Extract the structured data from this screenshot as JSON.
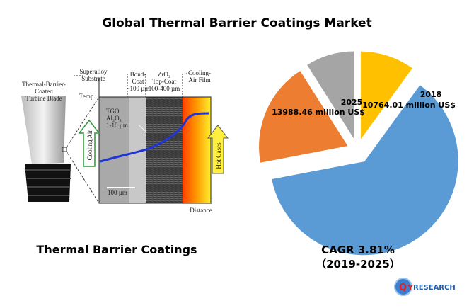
{
  "header": {
    "title": "Global Thermal Barrier Coatings Market"
  },
  "diagram": {
    "blade_label": [
      "Thermal-Barrier-",
      "Coated",
      "Turbine Blade"
    ],
    "substrate_label": [
      "Superalloy",
      "Substrate"
    ],
    "temp_label": "Temp.",
    "bond_coat_label": [
      "Bond-",
      "Coat",
      "~100 µm"
    ],
    "top_coat_label": [
      "ZrO₂",
      "Top-Coat",
      "100-400 µm"
    ],
    "film_label": [
      "Cooling-",
      "Air Film"
    ],
    "tgo_label": [
      "TGO",
      "Al₂O₃",
      "1-10 µm"
    ],
    "cooling_air": "Cooling Air",
    "hot_gases": "Hot Gases",
    "scale_bar": "100 µm",
    "distance_label": "Distance"
  },
  "caption": "Thermal Barrier Coatings",
  "pie": {
    "values": [
      10,
      62,
      19,
      9
    ],
    "colors": [
      "#ffc000",
      "#5b9bd5",
      "#ed7d31",
      "#a5a5a5"
    ]
  },
  "labels": {
    "year_2025": "2025",
    "value_2025": "13988.46 million US$",
    "year_2018": "2018",
    "value_2018": "10764.01 million US$"
  },
  "cagr": [
    "CAGR 3.81%",
    "（2019-2025）"
  ],
  "logo": {
    "q": "Q",
    "y": "Y",
    "rest": "RESEARCH"
  }
}
